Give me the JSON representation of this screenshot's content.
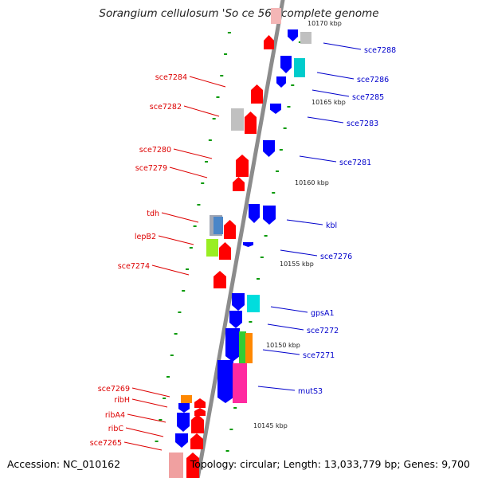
{
  "title": "Sorangium cellulosum 'So ce 56', complete genome",
  "footer": {
    "accession": "Accession: NC_010162",
    "summary": "Topology: circular; Length: 13,033,779 bp; Genes: 9,700"
  },
  "colors": {
    "backbone": "#8c8c8c",
    "forward_gene": "#ff0000",
    "reverse_gene": "#0000ff",
    "tick": "#009900",
    "label_right": "#0000cc",
    "label_left": "#dd0000"
  },
  "scale": {
    "unit": "kbp",
    "labels": [
      "10165 kbp",
      "10160 kbp",
      "10155 kbp",
      "10150 kbp",
      "10145 kbp"
    ],
    "partial_top_label": "10170 kbp"
  },
  "gene_labels_right": [
    "sce7288",
    "sce7286",
    "sce7285",
    "sce7283",
    "sce7281",
    "kbl",
    "sce7276",
    "gpsA1",
    "sce7272",
    "sce7271",
    "mutS3"
  ],
  "gene_labels_left": [
    "sce7284",
    "sce7282",
    "sce7280",
    "sce7279",
    "tdh",
    "lepB2",
    "sce7274",
    "sce7269",
    "ribH",
    "ribA4",
    "ribC",
    "sce7265"
  ]
}
